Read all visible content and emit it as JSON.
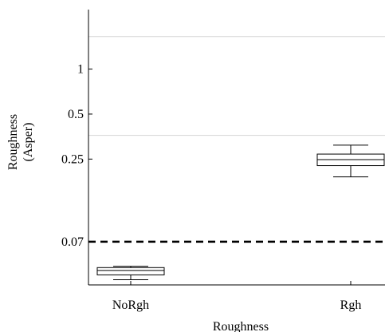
{
  "chart_data": {
    "type": "boxplot",
    "title": "",
    "xlabel": "Roughness",
    "ylabel_lines": [
      "Roughness",
      "(Asper)"
    ],
    "y_scale": "log",
    "ylim": [
      0.036,
      2.5
    ],
    "categories": [
      "NoRgh",
      "Rgh"
    ],
    "y_ticks": [
      {
        "value": 0.07,
        "label": "0.07"
      },
      {
        "value": 0.25,
        "label": "0.25"
      },
      {
        "value": 0.5,
        "label": "0.5"
      },
      {
        "value": 1,
        "label": "1"
      }
    ],
    "boxes": [
      {
        "category": "NoRgh",
        "min": 0.039,
        "q1": 0.042,
        "median": 0.045,
        "q3": 0.047,
        "max": 0.048
      },
      {
        "category": "Rgh",
        "min": 0.19,
        "q1": 0.226,
        "median": 0.248,
        "q3": 0.27,
        "max": 0.31
      }
    ],
    "reference_lines": [
      {
        "value": 0.07,
        "style": "dashed",
        "color": "#000000"
      },
      {
        "value": 0.36,
        "style": "solid",
        "color": "#d4d4d4"
      },
      {
        "value": 1.65,
        "style": "solid",
        "color": "#d4d4d4"
      }
    ],
    "grid": false,
    "legend": "none"
  }
}
